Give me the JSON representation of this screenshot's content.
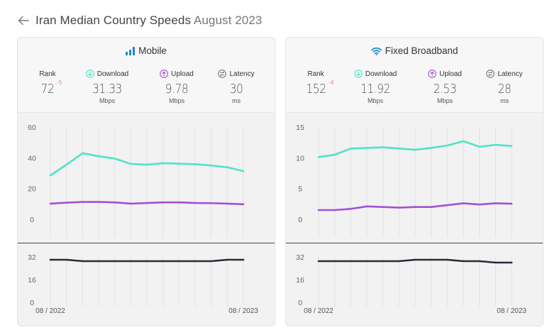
{
  "page": {
    "title_country": "Iran Median Country Speeds",
    "title_date": "August 2023"
  },
  "icons": {
    "back": "arrow-left-icon",
    "mobile": "signal-bars-icon",
    "fixed": "wifi-icon",
    "download": "download-arrow-icon",
    "upload": "upload-arrow-icon",
    "latency": "latency-icon"
  },
  "colors": {
    "download": "#4fe3c7",
    "upload": "#a34fd8",
    "latency": "#2a2a3a",
    "mobile_icon": "#1e88c9",
    "fixed_icon": "#1e88c9"
  },
  "cards": [
    {
      "title": "Mobile",
      "metrics": {
        "rank_label": "Rank",
        "rank_value": "72",
        "rank_change": "-5",
        "download_label": "Download",
        "download_value": "31.33",
        "download_unit": "Mbps",
        "upload_label": "Upload",
        "upload_value": "9.78",
        "upload_unit": "Mbps",
        "latency_label": "Latency",
        "latency_value": "30",
        "latency_unit": "ms"
      }
    },
    {
      "title": "Fixed Broadband",
      "metrics": {
        "rank_label": "Rank",
        "rank_value": "152",
        "rank_change": "-4",
        "download_label": "Download",
        "download_value": "11.92",
        "download_unit": "Mbps",
        "upload_label": "Upload",
        "upload_value": "2.53",
        "upload_unit": "Mbps",
        "latency_label": "Latency",
        "latency_value": "28",
        "latency_unit": "ms"
      }
    }
  ],
  "chart_data": [
    {
      "type": "line",
      "panel": "speed",
      "card": "Mobile",
      "x": [
        "08 / 2022",
        "09 / 2022",
        "10 / 2022",
        "11 / 2022",
        "12 / 2022",
        "01 / 2023",
        "02 / 2023",
        "03 / 2023",
        "04 / 2023",
        "05 / 2023",
        "06 / 2023",
        "07 / 2023",
        "08 / 2023"
      ],
      "x_tick_labels": [
        "08 / 2022",
        "08 / 2023"
      ],
      "y_ticks": [
        0,
        20,
        40,
        60
      ],
      "ylim": [
        0,
        60
      ],
      "series": [
        {
          "key": "download",
          "values": [
            28.5,
            35.5,
            43,
            41,
            39.5,
            36,
            35.5,
            36.5,
            36.2,
            35.8,
            35,
            33.8,
            31.33
          ]
        },
        {
          "key": "upload",
          "values": [
            10.2,
            10.8,
            11.3,
            11.3,
            11,
            10.2,
            10.6,
            11,
            11,
            10.6,
            10.5,
            10.2,
            9.78
          ]
        }
      ],
      "grid": "vertical"
    },
    {
      "type": "line",
      "panel": "latency",
      "card": "Mobile",
      "x": [
        "08 / 2022",
        "09 / 2022",
        "10 / 2022",
        "11 / 2022",
        "12 / 2022",
        "01 / 2023",
        "02 / 2023",
        "03 / 2023",
        "04 / 2023",
        "05 / 2023",
        "06 / 2023",
        "07 / 2023",
        "08 / 2023"
      ],
      "x_tick_labels": [
        "08 / 2022",
        "08 / 2023"
      ],
      "y_ticks": [
        0,
        16,
        32
      ],
      "ylim": [
        0,
        38
      ],
      "series": [
        {
          "key": "latency",
          "values": [
            30,
            30,
            29,
            29,
            29,
            29,
            29,
            29,
            29,
            29,
            29,
            30,
            30
          ]
        }
      ],
      "grid": "vertical"
    },
    {
      "type": "line",
      "panel": "speed",
      "card": "Fixed Broadband",
      "x": [
        "08 / 2022",
        "09 / 2022",
        "10 / 2022",
        "11 / 2022",
        "12 / 2022",
        "01 / 2023",
        "02 / 2023",
        "03 / 2023",
        "04 / 2023",
        "05 / 2023",
        "06 / 2023",
        "07 / 2023",
        "08 / 2023"
      ],
      "x_tick_labels": [
        "08 / 2022",
        "08 / 2023"
      ],
      "y_ticks": [
        0,
        5,
        10,
        15
      ],
      "ylim": [
        0,
        15
      ],
      "series": [
        {
          "key": "download",
          "values": [
            10.1,
            10.5,
            11.5,
            11.6,
            11.7,
            11.5,
            11.3,
            11.6,
            12,
            12.7,
            11.8,
            12.1,
            11.92
          ]
        },
        {
          "key": "upload",
          "values": [
            1.5,
            1.5,
            1.7,
            2.1,
            2.0,
            1.9,
            2.0,
            2.0,
            2.3,
            2.6,
            2.4,
            2.6,
            2.53
          ]
        }
      ],
      "grid": "vertical"
    },
    {
      "type": "line",
      "panel": "latency",
      "card": "Fixed Broadband",
      "x": [
        "08 / 2022",
        "09 / 2022",
        "10 / 2022",
        "11 / 2022",
        "12 / 2022",
        "01 / 2023",
        "02 / 2023",
        "03 / 2023",
        "04 / 2023",
        "05 / 2023",
        "06 / 2023",
        "07 / 2023",
        "08 / 2023"
      ],
      "x_tick_labels": [
        "08 / 2022",
        "08 / 2023"
      ],
      "y_ticks": [
        0,
        16,
        32
      ],
      "ylim": [
        0,
        38
      ],
      "series": [
        {
          "key": "latency",
          "values": [
            29,
            29,
            29,
            29,
            29,
            29,
            30,
            30,
            30,
            29,
            29,
            28,
            28
          ]
        }
      ],
      "grid": "vertical"
    }
  ]
}
